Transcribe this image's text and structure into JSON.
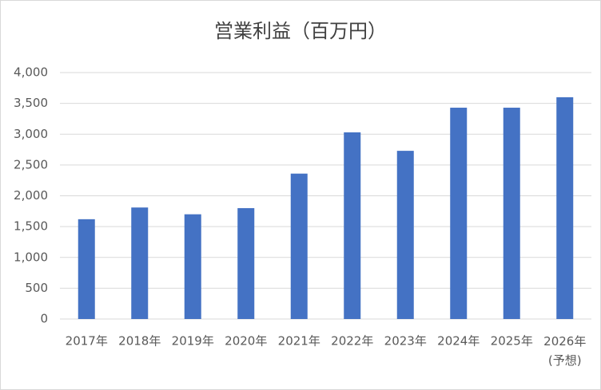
{
  "chart_data": {
    "type": "bar",
    "title": "営業利益（百万円）",
    "categories": [
      "2017年",
      "2018年",
      "2019年",
      "2020年",
      "2021年",
      "2022年",
      "2023年",
      "2024年",
      "2025年",
      "2026年\n(予想)"
    ],
    "values": [
      1620,
      1810,
      1700,
      1800,
      2360,
      3030,
      2730,
      3430,
      3430,
      3600
    ],
    "color": "#4472c4",
    "ylim": [
      0,
      4000
    ],
    "yticks": [
      0,
      {
        "value": 500,
        "label": "500"
      },
      {
        "value": 1000,
        "label": "1,000"
      },
      {
        "value": 1500,
        "label": "1,500"
      },
      {
        "value": 2000,
        "label": "2,000"
      },
      {
        "value": 2500,
        "label": "2,500"
      },
      {
        "value": 3000,
        "label": "3,000"
      },
      {
        "value": 3500,
        "label": "3,500"
      },
      {
        "value": 4000,
        "label": "4,000"
      }
    ],
    "grid": true
  }
}
